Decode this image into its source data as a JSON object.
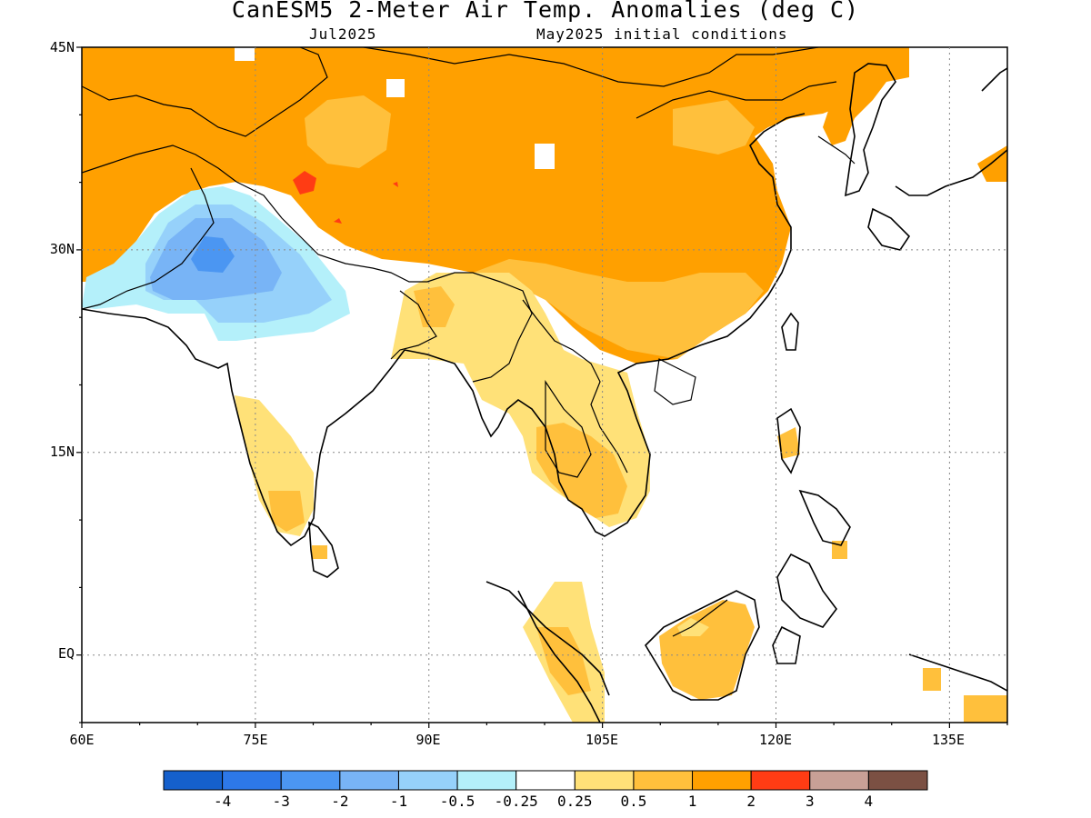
{
  "title": "CanESM5 2-Meter Air Temp. Anomalies (deg C)",
  "subtitle_left": "Jul2025",
  "subtitle_right": "May2025 initial conditions",
  "lat_labels": [
    "45N",
    "30N",
    "15N",
    "EQ"
  ],
  "lon_labels": [
    "60E",
    "75E",
    "90E",
    "105E",
    "120E",
    "135E"
  ],
  "colorbar": {
    "colors": [
      "#1560cc",
      "#2d78e8",
      "#4b96f2",
      "#78b4f6",
      "#96d1fa",
      "#b4f0fa",
      "#ffffff",
      "#ffe178",
      "#ffc03c",
      "#ffa000",
      "#ff3c14",
      "#c8a096",
      "#7b5043"
    ],
    "labels": [
      "-4",
      "-3",
      "-2",
      "-1",
      "-0.5",
      "-0.25",
      "0.25",
      "0.5",
      "1",
      "2",
      "3",
      "4"
    ]
  },
  "map_extent": {
    "lon": [
      60,
      140
    ],
    "lat": [
      -5,
      45
    ]
  }
}
